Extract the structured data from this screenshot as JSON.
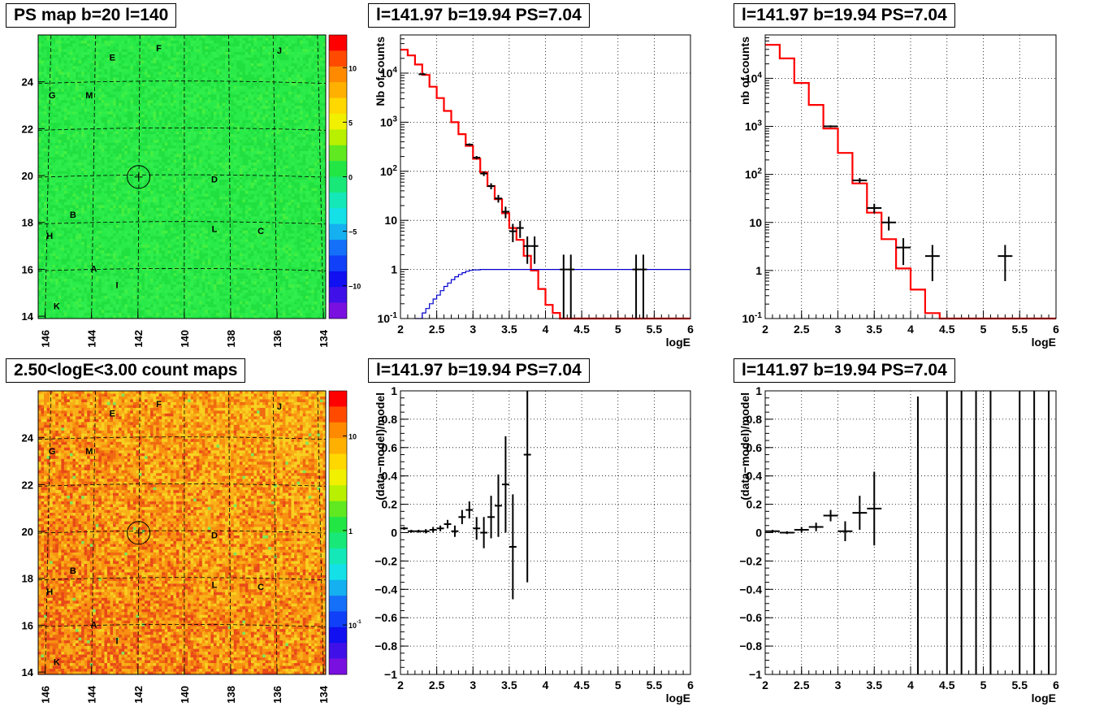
{
  "colors": {
    "model": "#ff0000",
    "flat": "#0000cc",
    "data": "#000000",
    "map_bg_ps": "#22e644",
    "map_bg_counts": "#f5a028"
  },
  "maps": [
    {
      "title": "PS map b=20 l=140",
      "x_ticks": [
        "146",
        "144",
        "142",
        "140",
        "138",
        "136",
        "134"
      ],
      "y_ticks": [
        "14",
        "16",
        "18",
        "20",
        "22",
        "24"
      ],
      "colorbar": {
        "scale": "linear",
        "ticks": [
          "10",
          "5",
          "0",
          "-5",
          "-10"
        ],
        "range": [
          -13,
          13
        ]
      },
      "labels": [
        {
          "t": "F",
          "l": 141.1,
          "b": 25.3
        },
        {
          "t": "J",
          "l": 135.9,
          "b": 25.2
        },
        {
          "t": "E",
          "l": 143.1,
          "b": 24.9
        },
        {
          "t": "G",
          "l": 145.7,
          "b": 23.3
        },
        {
          "t": "M",
          "l": 144.1,
          "b": 23.3
        },
        {
          "t": "D",
          "l": 138.7,
          "b": 19.7
        },
        {
          "t": "B",
          "l": 144.8,
          "b": 18.2
        },
        {
          "t": "H",
          "l": 145.8,
          "b": 17.3
        },
        {
          "t": "L",
          "l": 138.7,
          "b": 17.6
        },
        {
          "t": "C",
          "l": 136.7,
          "b": 17.5
        },
        {
          "t": "A",
          "l": 143.9,
          "b": 15.9
        },
        {
          "t": "I",
          "l": 142.9,
          "b": 15.2
        },
        {
          "t": "K",
          "l": 145.5,
          "b": 14.3
        }
      ],
      "marker": {
        "l": 141.97,
        "b": 19.94
      }
    },
    {
      "title": "2.50<logE<3.00 count maps",
      "x_ticks": [
        "146",
        "144",
        "142",
        "140",
        "138",
        "136",
        "134"
      ],
      "y_ticks": [
        "14",
        "16",
        "18",
        "20",
        "22",
        "24"
      ],
      "colorbar": {
        "scale": "log",
        "ticks": [
          "10",
          "1",
          "10^-1"
        ],
        "range": [
          0.03,
          30
        ]
      },
      "labels": [
        {
          "t": "F",
          "l": 141.1,
          "b": 25.3
        },
        {
          "t": "J",
          "l": 135.9,
          "b": 25.2
        },
        {
          "t": "E",
          "l": 143.1,
          "b": 24.9
        },
        {
          "t": "G",
          "l": 145.7,
          "b": 23.3
        },
        {
          "t": "M",
          "l": 144.1,
          "b": 23.3
        },
        {
          "t": "D",
          "l": 138.7,
          "b": 19.7
        },
        {
          "t": "B",
          "l": 144.8,
          "b": 18.2
        },
        {
          "t": "H",
          "l": 145.8,
          "b": 17.3
        },
        {
          "t": "L",
          "l": 138.7,
          "b": 17.6
        },
        {
          "t": "C",
          "l": 136.7,
          "b": 17.5
        },
        {
          "t": "A",
          "l": 143.9,
          "b": 15.9
        },
        {
          "t": "I",
          "l": 142.9,
          "b": 15.2
        },
        {
          "t": "K",
          "l": 145.5,
          "b": 14.3
        }
      ],
      "marker": {
        "l": 141.97,
        "b": 19.94
      }
    }
  ],
  "chart_data": [
    {
      "type": "line",
      "title": "l=141.97 b=19.94 PS=7.04",
      "xlabel": "logE",
      "ylabel": "Nb of counts",
      "yscale": "log",
      "xlim": [
        2,
        6
      ],
      "ylim": [
        0.1,
        60000
      ],
      "x_ticks": [
        "2",
        "2.5",
        "3",
        "3.5",
        "4",
        "4.5",
        "5",
        "5.5",
        "6"
      ],
      "y_ticks": [
        {
          "v": 0.1,
          "t": "10^-1"
        },
        {
          "v": 1,
          "t": "1"
        },
        {
          "v": 10,
          "t": "10"
        },
        {
          "v": 100,
          "t": "10^2"
        },
        {
          "v": 1000,
          "t": "10^3"
        },
        {
          "v": 10000,
          "t": "10^4"
        }
      ],
      "grid": true,
      "series": [
        {
          "kind": "hist",
          "color": "model",
          "edges": [
            2,
            2.1,
            2.2,
            2.3,
            2.4,
            2.5,
            2.6,
            2.7,
            2.8,
            2.9,
            3.0,
            3.1,
            3.2,
            3.3,
            3.4,
            3.5,
            3.6,
            3.7,
            3.8,
            3.9,
            4.0,
            4.1,
            4.2,
            4.3,
            4.4,
            6.0
          ],
          "values": [
            30000,
            23000,
            15000,
            9200,
            5300,
            3100,
            1700,
            1000,
            570,
            330,
            180,
            95,
            50,
            27,
            14,
            7,
            4,
            1.9,
            0.95,
            0.4,
            0.19,
            0.13,
            0.1,
            0.1,
            0.1
          ]
        },
        {
          "kind": "hist",
          "color": "flat",
          "edges": [
            2.2,
            2.3,
            2.35,
            2.4,
            2.45,
            2.5,
            2.55,
            2.6,
            2.65,
            2.7,
            2.75,
            2.8,
            2.85,
            2.9,
            2.95,
            3.0,
            3.1,
            3.2,
            6.0
          ],
          "values": [
            0.1,
            0.13,
            0.16,
            0.2,
            0.25,
            0.3,
            0.37,
            0.45,
            0.53,
            0.62,
            0.71,
            0.79,
            0.86,
            0.92,
            0.96,
            0.98,
            1.0,
            1.0
          ]
        },
        {
          "kind": "points",
          "color": "data",
          "points": [
            {
              "x": 2.3,
              "y": 9500,
              "xe": 0.05,
              "lo": 9300,
              "hi": 9700
            },
            {
              "x": 2.95,
              "y": 350,
              "xe": 0.05,
              "lo": 330,
              "hi": 370
            },
            {
              "x": 3.05,
              "y": 190,
              "xe": 0.05,
              "lo": 175,
              "hi": 205
            },
            {
              "x": 3.15,
              "y": 90,
              "xe": 0.05,
              "lo": 80,
              "hi": 100
            },
            {
              "x": 3.25,
              "y": 50,
              "xe": 0.05,
              "lo": 43,
              "hi": 57
            },
            {
              "x": 3.35,
              "y": 28,
              "xe": 0.05,
              "lo": 23,
              "hi": 33
            },
            {
              "x": 3.45,
              "y": 15,
              "xe": 0.05,
              "lo": 11,
              "hi": 19
            },
            {
              "x": 3.55,
              "y": 6,
              "xe": 0.05,
              "lo": 3.6,
              "hi": 8.5
            },
            {
              "x": 3.65,
              "y": 7,
              "xe": 0.05,
              "lo": 4.4,
              "hi": 9.7
            },
            {
              "x": 3.75,
              "y": 3,
              "xe": 0.05,
              "lo": 1.3,
              "hi": 4.7
            },
            {
              "x": 3.85,
              "y": 3,
              "xe": 0.05,
              "lo": 1.3,
              "hi": 4.7
            },
            {
              "x": 4.25,
              "y": 1,
              "xe": 0.05,
              "lo": 0.1,
              "hi": 2
            },
            {
              "x": 4.35,
              "y": 1,
              "xe": 0.05,
              "lo": 0.1,
              "hi": 2
            },
            {
              "x": 5.25,
              "y": 1,
              "xe": 0.05,
              "lo": 0.1,
              "hi": 2
            },
            {
              "x": 5.35,
              "y": 1,
              "xe": 0.05,
              "lo": 0.1,
              "hi": 2
            }
          ]
        }
      ]
    },
    {
      "type": "line",
      "title": "l=141.97 b=19.94 PS=7.04",
      "xlabel": "logE",
      "ylabel": "nb of counts",
      "yscale": "log",
      "xlim": [
        2,
        6
      ],
      "ylim": [
        0.1,
        80000
      ],
      "x_ticks": [
        "2",
        "2.5",
        "3",
        "3.5",
        "4",
        "4.5",
        "5",
        "5.5",
        "6"
      ],
      "y_ticks": [
        {
          "v": 0.1,
          "t": "10^-1"
        },
        {
          "v": 1,
          "t": "1"
        },
        {
          "v": 10,
          "t": "10"
        },
        {
          "v": 100,
          "t": "10^2"
        },
        {
          "v": 1000,
          "t": "10^3"
        },
        {
          "v": 10000,
          "t": "10^4"
        }
      ],
      "grid": true,
      "series": [
        {
          "kind": "hist",
          "color": "model",
          "edges": [
            2,
            2.2,
            2.4,
            2.6,
            2.8,
            3.0,
            3.2,
            3.4,
            3.6,
            3.8,
            4.0,
            4.2,
            4.4,
            6.0
          ],
          "values": [
            50000,
            26000,
            8000,
            2800,
            900,
            280,
            65,
            16,
            4.5,
            1.1,
            0.4,
            0.13,
            0.1
          ]
        },
        {
          "kind": "points",
          "color": "data",
          "points": [
            {
              "x": 2.9,
              "y": 1000,
              "xe": 0.1,
              "lo": 950,
              "hi": 1050
            },
            {
              "x": 3.3,
              "y": 75,
              "xe": 0.1,
              "lo": 66,
              "hi": 84
            },
            {
              "x": 3.5,
              "y": 20,
              "xe": 0.1,
              "lo": 15.5,
              "hi": 24.5
            },
            {
              "x": 3.7,
              "y": 10,
              "xe": 0.1,
              "lo": 6.8,
              "hi": 13.2
            },
            {
              "x": 3.9,
              "y": 3,
              "xe": 0.1,
              "lo": 1.3,
              "hi": 4.7
            },
            {
              "x": 4.3,
              "y": 2,
              "xe": 0.1,
              "lo": 0.6,
              "hi": 3.4
            },
            {
              "x": 5.3,
              "y": 2,
              "xe": 0.1,
              "lo": 0.6,
              "hi": 3.4
            }
          ]
        }
      ]
    },
    {
      "type": "scatter",
      "title": "l=141.97 b=19.94 PS=7.04",
      "xlabel": "logE",
      "ylabel": "(data-model)/model",
      "yscale": "linear",
      "xlim": [
        2,
        6
      ],
      "ylim": [
        -1,
        1
      ],
      "x_ticks": [
        "2",
        "2.5",
        "3",
        "3.5",
        "4",
        "4.5",
        "5",
        "5.5",
        "6"
      ],
      "y_ticks": [
        {
          "v": -1,
          "t": "-1"
        },
        {
          "v": -0.8,
          "t": "-0.8"
        },
        {
          "v": -0.6,
          "t": "-0.6"
        },
        {
          "v": -0.4,
          "t": "-0.4"
        },
        {
          "v": -0.2,
          "t": "-0.2"
        },
        {
          "v": 0,
          "t": "0"
        },
        {
          "v": 0.2,
          "t": "0.2"
        },
        {
          "v": 0.4,
          "t": "0.4"
        },
        {
          "v": 0.6,
          "t": "0.6"
        },
        {
          "v": 0.8,
          "t": "0.8"
        },
        {
          "v": 1,
          "t": "1"
        }
      ],
      "grid": true,
      "series": [
        {
          "kind": "points",
          "color": "data",
          "points": [
            {
              "x": 2.05,
              "y": 0.03,
              "xe": 0.05,
              "lo": 0.02,
              "hi": 0.04
            },
            {
              "x": 2.15,
              "y": 0.01,
              "xe": 0.05,
              "lo": 0.0,
              "hi": 0.02
            },
            {
              "x": 2.25,
              "y": 0.01,
              "xe": 0.05,
              "lo": 0.0,
              "hi": 0.02
            },
            {
              "x": 2.35,
              "y": 0.01,
              "xe": 0.05,
              "lo": -0.005,
              "hi": 0.025
            },
            {
              "x": 2.45,
              "y": 0.02,
              "xe": 0.05,
              "lo": 0.0,
              "hi": 0.04
            },
            {
              "x": 2.55,
              "y": 0.03,
              "xe": 0.05,
              "lo": 0.01,
              "hi": 0.05
            },
            {
              "x": 2.65,
              "y": 0.06,
              "xe": 0.05,
              "lo": 0.03,
              "hi": 0.09
            },
            {
              "x": 2.75,
              "y": 0.01,
              "xe": 0.05,
              "lo": -0.03,
              "hi": 0.05
            },
            {
              "x": 2.85,
              "y": 0.11,
              "xe": 0.05,
              "lo": 0.06,
              "hi": 0.16
            },
            {
              "x": 2.95,
              "y": 0.16,
              "xe": 0.05,
              "lo": 0.1,
              "hi": 0.22
            },
            {
              "x": 3.05,
              "y": 0.03,
              "xe": 0.05,
              "lo": -0.05,
              "hi": 0.11
            },
            {
              "x": 3.15,
              "y": 0.0,
              "xe": 0.05,
              "lo": -0.11,
              "hi": 0.11
            },
            {
              "x": 3.25,
              "y": 0.11,
              "xe": 0.05,
              "lo": -0.04,
              "hi": 0.26
            },
            {
              "x": 3.35,
              "y": 0.19,
              "xe": 0.05,
              "lo": -0.03,
              "hi": 0.41
            },
            {
              "x": 3.45,
              "y": 0.34,
              "xe": 0.05,
              "lo": 0.0,
              "hi": 0.68
            },
            {
              "x": 3.55,
              "y": -0.1,
              "xe": 0.05,
              "lo": -0.47,
              "hi": 0.27
            },
            {
              "x": 3.75,
              "y": 0.55,
              "xe": 0.05,
              "lo": -0.35,
              "hi": 1.0
            }
          ]
        }
      ]
    },
    {
      "type": "scatter",
      "title": "l=141.97 b=19.94 PS=7.04",
      "xlabel": "logE",
      "ylabel": "(data-model)/model",
      "yscale": "linear",
      "xlim": [
        2,
        6
      ],
      "ylim": [
        -1,
        1
      ],
      "x_ticks": [
        "2",
        "2.5",
        "3",
        "3.5",
        "4",
        "4.5",
        "5",
        "5.5",
        "6"
      ],
      "y_ticks": [
        {
          "v": -1,
          "t": "-1"
        },
        {
          "v": -0.8,
          "t": "-0.8"
        },
        {
          "v": -0.6,
          "t": "-0.6"
        },
        {
          "v": -0.4,
          "t": "-0.4"
        },
        {
          "v": -0.2,
          "t": "-0.2"
        },
        {
          "v": 0,
          "t": "0"
        },
        {
          "v": 0.2,
          "t": "0.2"
        },
        {
          "v": 0.4,
          "t": "0.4"
        },
        {
          "v": 0.6,
          "t": "0.6"
        },
        {
          "v": 0.8,
          "t": "0.8"
        },
        {
          "v": 1,
          "t": "1"
        }
      ],
      "grid": true,
      "series": [
        {
          "kind": "points",
          "color": "data",
          "points": [
            {
              "x": 2.1,
              "y": 0.01,
              "xe": 0.1,
              "lo": 0.0,
              "hi": 0.02
            },
            {
              "x": 2.3,
              "y": 0.0,
              "xe": 0.1,
              "lo": -0.01,
              "hi": 0.01
            },
            {
              "x": 2.5,
              "y": 0.02,
              "xe": 0.1,
              "lo": 0.0,
              "hi": 0.04
            },
            {
              "x": 2.7,
              "y": 0.04,
              "xe": 0.1,
              "lo": 0.01,
              "hi": 0.07
            },
            {
              "x": 2.9,
              "y": 0.12,
              "xe": 0.1,
              "lo": 0.08,
              "hi": 0.16
            },
            {
              "x": 3.1,
              "y": 0.01,
              "xe": 0.1,
              "lo": -0.06,
              "hi": 0.08
            },
            {
              "x": 3.3,
              "y": 0.14,
              "xe": 0.1,
              "lo": 0.02,
              "hi": 0.26
            },
            {
              "x": 3.5,
              "y": 0.17,
              "xe": 0.1,
              "lo": -0.09,
              "hi": 0.43
            },
            {
              "x": 4.1,
              "y": -1,
              "xe": 0,
              "lo": -1,
              "hi": 0.96
            },
            {
              "x": 4.5,
              "y": -1,
              "xe": 0,
              "lo": -1,
              "hi": 1
            },
            {
              "x": 4.7,
              "y": -1,
              "xe": 0,
              "lo": -1,
              "hi": 1
            },
            {
              "x": 4.9,
              "y": -1,
              "xe": 0,
              "lo": -1,
              "hi": 1
            },
            {
              "x": 5.1,
              "y": -1,
              "xe": 0,
              "lo": -1,
              "hi": 1
            },
            {
              "x": 5.5,
              "y": -1,
              "xe": 0,
              "lo": -1,
              "hi": 1
            },
            {
              "x": 5.7,
              "y": -1,
              "xe": 0,
              "lo": -1,
              "hi": 1
            },
            {
              "x": 5.9,
              "y": -1,
              "xe": 0,
              "lo": -1,
              "hi": 1
            }
          ]
        }
      ]
    }
  ]
}
